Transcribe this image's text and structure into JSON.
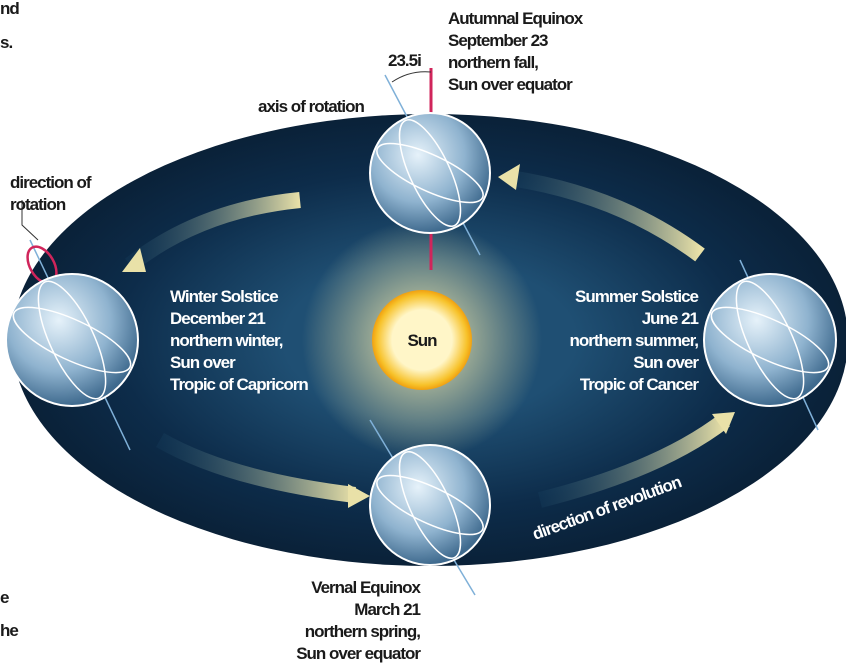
{
  "fragments": {
    "top": [
      "nd",
      "s."
    ],
    "bottom": [
      "e",
      "he"
    ]
  },
  "labels": {
    "angle": "23.5i",
    "axis": "axis of rotation",
    "rotation": [
      "direction of",
      "rotation"
    ],
    "sun": "Sun",
    "revolution": "direction of revolution"
  },
  "seasons": {
    "autumnal": [
      "Autumnal Equinox",
      "September 23",
      "northern fall,",
      "Sun over equator"
    ],
    "winter": [
      "Winter Solstice",
      "December 21",
      "northern winter,",
      "Sun over",
      "Tropic of Capricorn"
    ],
    "summer": [
      "Summer Solstice",
      "June 21",
      "northern summer,",
      "Sun over",
      "Tropic of Cancer"
    ],
    "vernal": [
      "Vernal Equinox",
      "March 21",
      "northern spring,",
      "Sun over equator"
    ]
  }
}
